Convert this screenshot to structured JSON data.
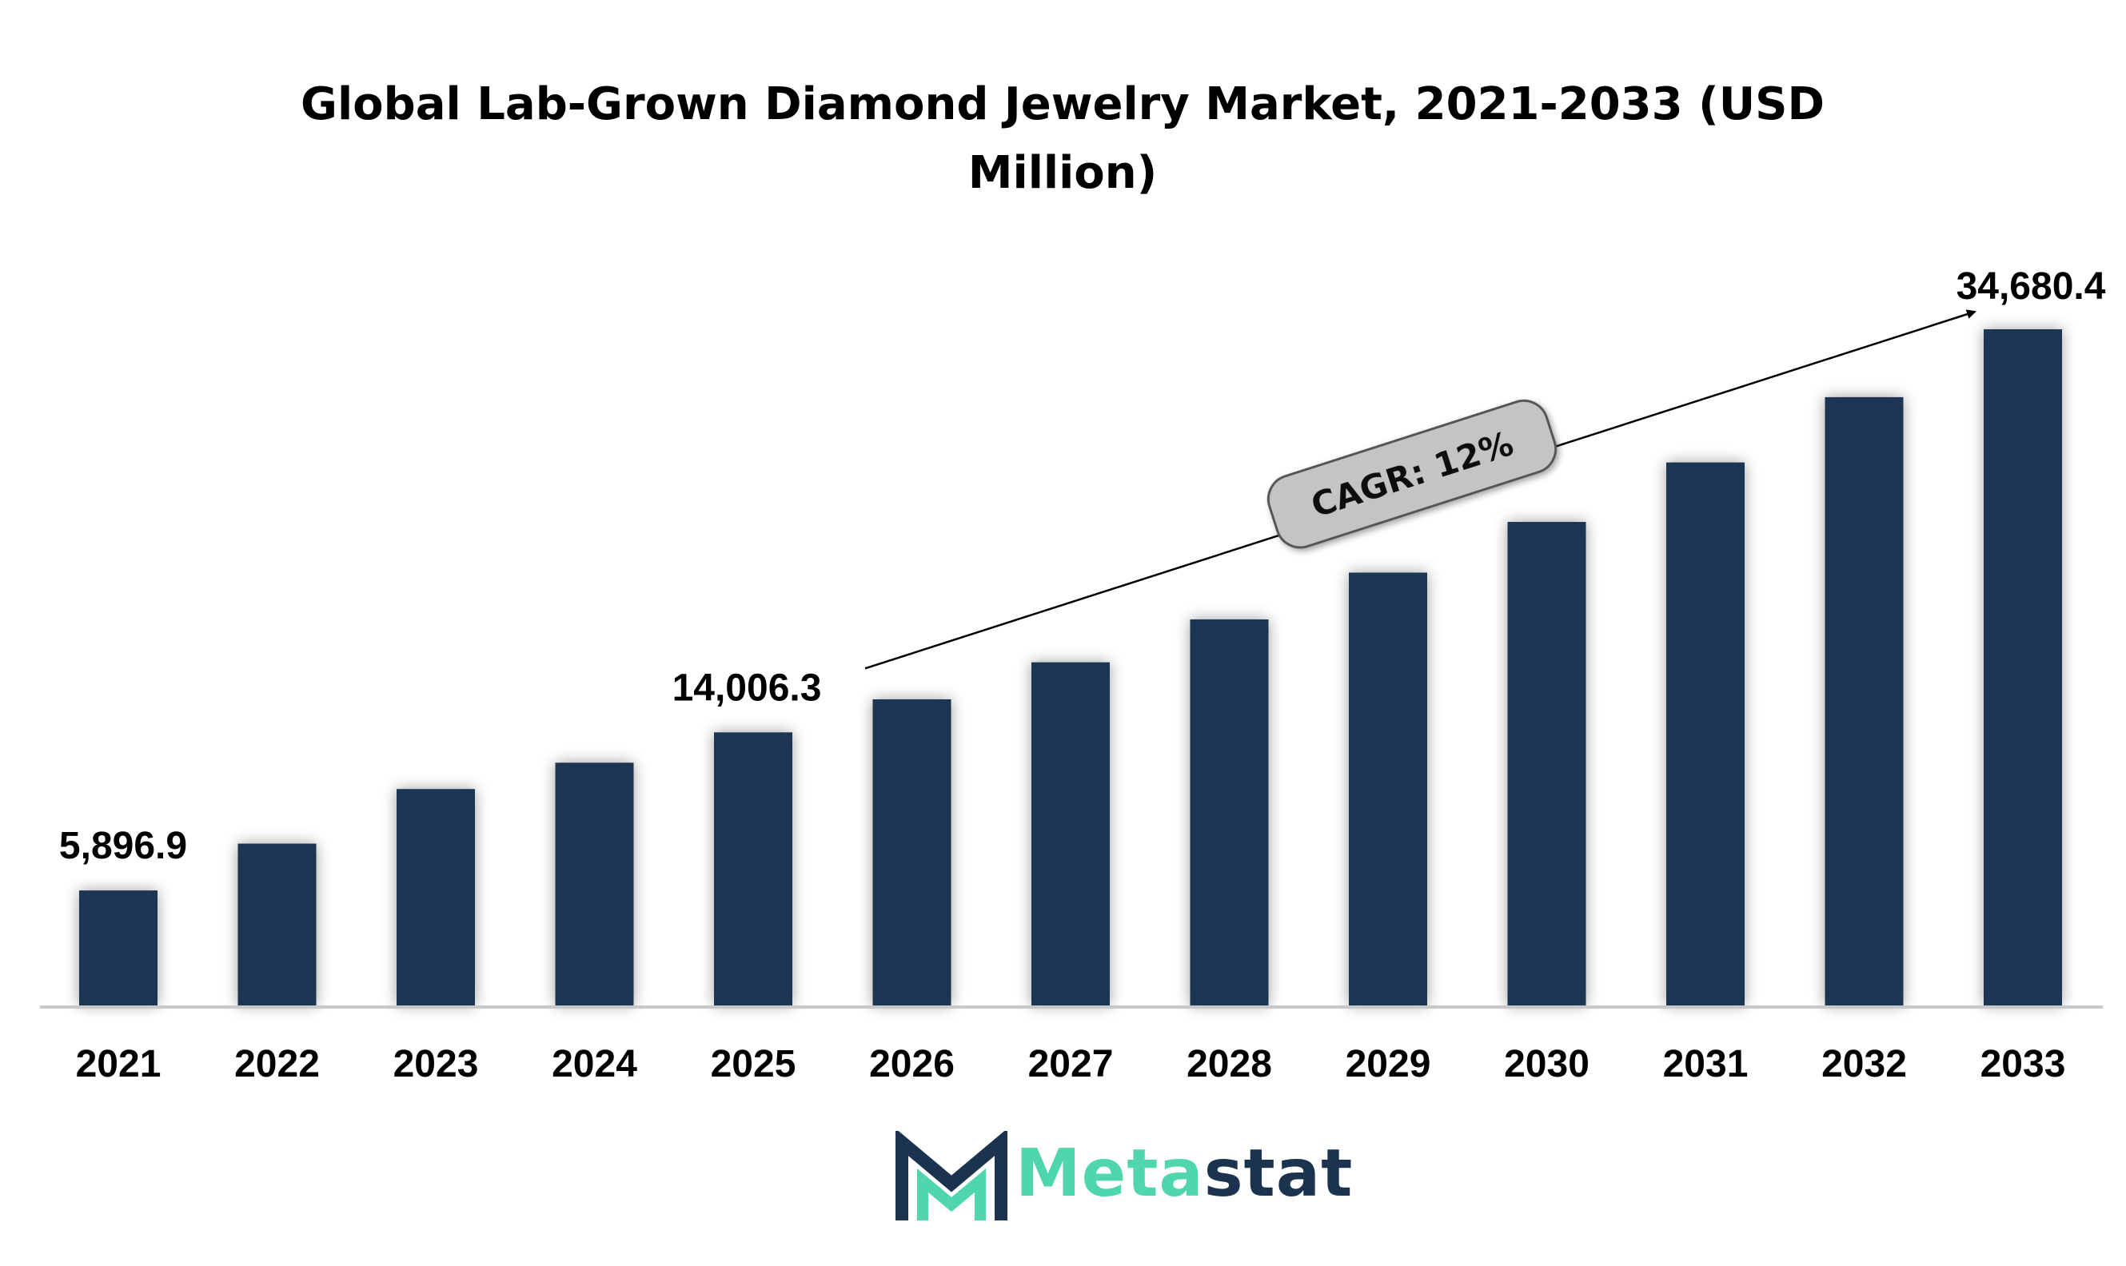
{
  "chart_data": {
    "type": "bar",
    "title": "Global Lab-Grown Diamond Jewelry Market, 2021-2033 (USD Million)",
    "title_lines": [
      "Global Lab-Grown Diamond Jewelry Market, 2021-2033 (USD",
      "Million)"
    ],
    "categories": [
      "2021",
      "2022",
      "2023",
      "2024",
      "2025",
      "2026",
      "2027",
      "2028",
      "2029",
      "2030",
      "2031",
      "2032",
      "2033"
    ],
    "values": [
      5896.9,
      8300,
      11100,
      12450,
      14006.3,
      15700,
      17600,
      19800,
      22200,
      24800,
      27850,
      31200,
      34680.4
    ],
    "data_labels": [
      {
        "category": "2021",
        "text": "5,896.9"
      },
      {
        "category": "2025",
        "text": "14,006.3"
      },
      {
        "category": "2033",
        "text": "34,680.4"
      }
    ],
    "annotation": {
      "text": "CAGR: 12%",
      "from": "2025",
      "to": "2033"
    },
    "ylim": [
      0,
      36000
    ],
    "xlabel": "",
    "ylabel": "",
    "grid": false,
    "legend": "none",
    "colors": {
      "bar": "#1b3452",
      "axis": "#c8c8c8",
      "pill": "#c4c4c4",
      "pill_border": "#555555"
    }
  },
  "logo": {
    "text_part1": "Meta",
    "text_part2": "stat",
    "mark_color": "#1b334f",
    "accent_color": "#4fd6ad"
  }
}
